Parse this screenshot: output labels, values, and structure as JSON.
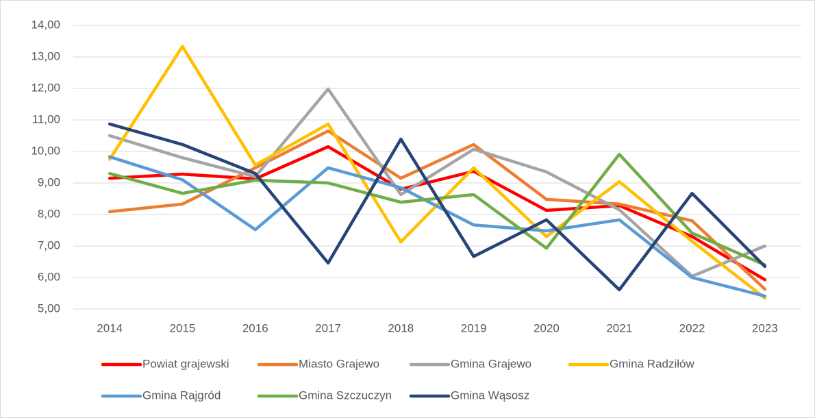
{
  "chart_data": {
    "type": "line",
    "categories": [
      "2014",
      "2015",
      "2016",
      "2017",
      "2018",
      "2019",
      "2020",
      "2021",
      "2022",
      "2023"
    ],
    "ylim": [
      5,
      14
    ],
    "yticks": [
      {
        "value": 5,
        "label": "5,00"
      },
      {
        "value": 6,
        "label": "6,00"
      },
      {
        "value": 7,
        "label": "7,00"
      },
      {
        "value": 8,
        "label": "8,00"
      },
      {
        "value": 9,
        "label": "9,00"
      },
      {
        "value": 10,
        "label": "10,00"
      },
      {
        "value": 11,
        "label": "11,00"
      },
      {
        "value": 12,
        "label": "12,00"
      },
      {
        "value": 13,
        "label": "13,00"
      },
      {
        "value": 14,
        "label": "14,00"
      }
    ],
    "grid": true,
    "legend": "bottom",
    "series": [
      {
        "name": "Powiat grajewski",
        "color": "#ff0000",
        "values": [
          9.15,
          9.28,
          9.13,
          10.15,
          8.8,
          9.37,
          8.13,
          8.28,
          7.3,
          5.93
        ]
      },
      {
        "name": "Miasto Grajewo",
        "color": "#ed7d31",
        "values": [
          8.09,
          8.33,
          9.48,
          10.65,
          9.15,
          10.22,
          8.48,
          8.33,
          7.8,
          5.63
        ]
      },
      {
        "name": "Gmina Grajewo",
        "color": "#a5a5a5",
        "values": [
          10.5,
          9.8,
          9.2,
          11.98,
          8.63,
          10.07,
          9.35,
          8.15,
          6.04,
          7.0
        ]
      },
      {
        "name": "Gmina Radziłów",
        "color": "#ffc000",
        "values": [
          9.75,
          13.33,
          9.57,
          10.87,
          7.13,
          9.48,
          7.3,
          9.04,
          7.15,
          5.35
        ]
      },
      {
        "name": "Gmina Rajgród",
        "color": "#5b9bd5",
        "values": [
          9.83,
          9.1,
          7.52,
          9.48,
          8.85,
          7.67,
          7.48,
          7.83,
          6.0,
          5.41
        ]
      },
      {
        "name": "Gmina Szczuczyn",
        "color": "#70ad47",
        "values": [
          9.3,
          8.67,
          9.09,
          9.0,
          8.39,
          8.63,
          6.93,
          9.91,
          7.41,
          6.4
        ]
      },
      {
        "name": "Gmina Wąsosz",
        "color": "#264478",
        "values": [
          10.87,
          10.22,
          9.3,
          6.46,
          10.39,
          6.67,
          7.83,
          5.61,
          8.67,
          6.35
        ]
      }
    ]
  }
}
